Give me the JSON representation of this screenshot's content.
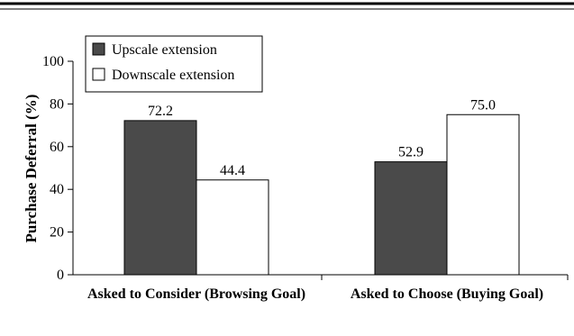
{
  "chart_data": {
    "type": "bar",
    "categories": [
      "Asked to Consider (Browsing Goal)",
      "Asked to Choose (Buying Goal)"
    ],
    "series": [
      {
        "name": "Upscale extension",
        "values": [
          72.2,
          52.9
        ],
        "labels": [
          "72.2",
          "52.9"
        ],
        "color": "#4a4a4a"
      },
      {
        "name": "Downscale extension",
        "values": [
          44.4,
          75.0
        ],
        "labels": [
          "44.4",
          "75.0"
        ],
        "color": "#ffffff"
      }
    ],
    "ylabel": "Purchase Deferral (%)",
    "xlabel": "",
    "ylim": [
      0,
      100
    ],
    "yticks": [
      0,
      20,
      40,
      60,
      80,
      100
    ],
    "ytick_labels": [
      "0",
      "20",
      "40",
      "60",
      "80",
      "100"
    ],
    "legend_position": "top-left",
    "grid": false
  }
}
